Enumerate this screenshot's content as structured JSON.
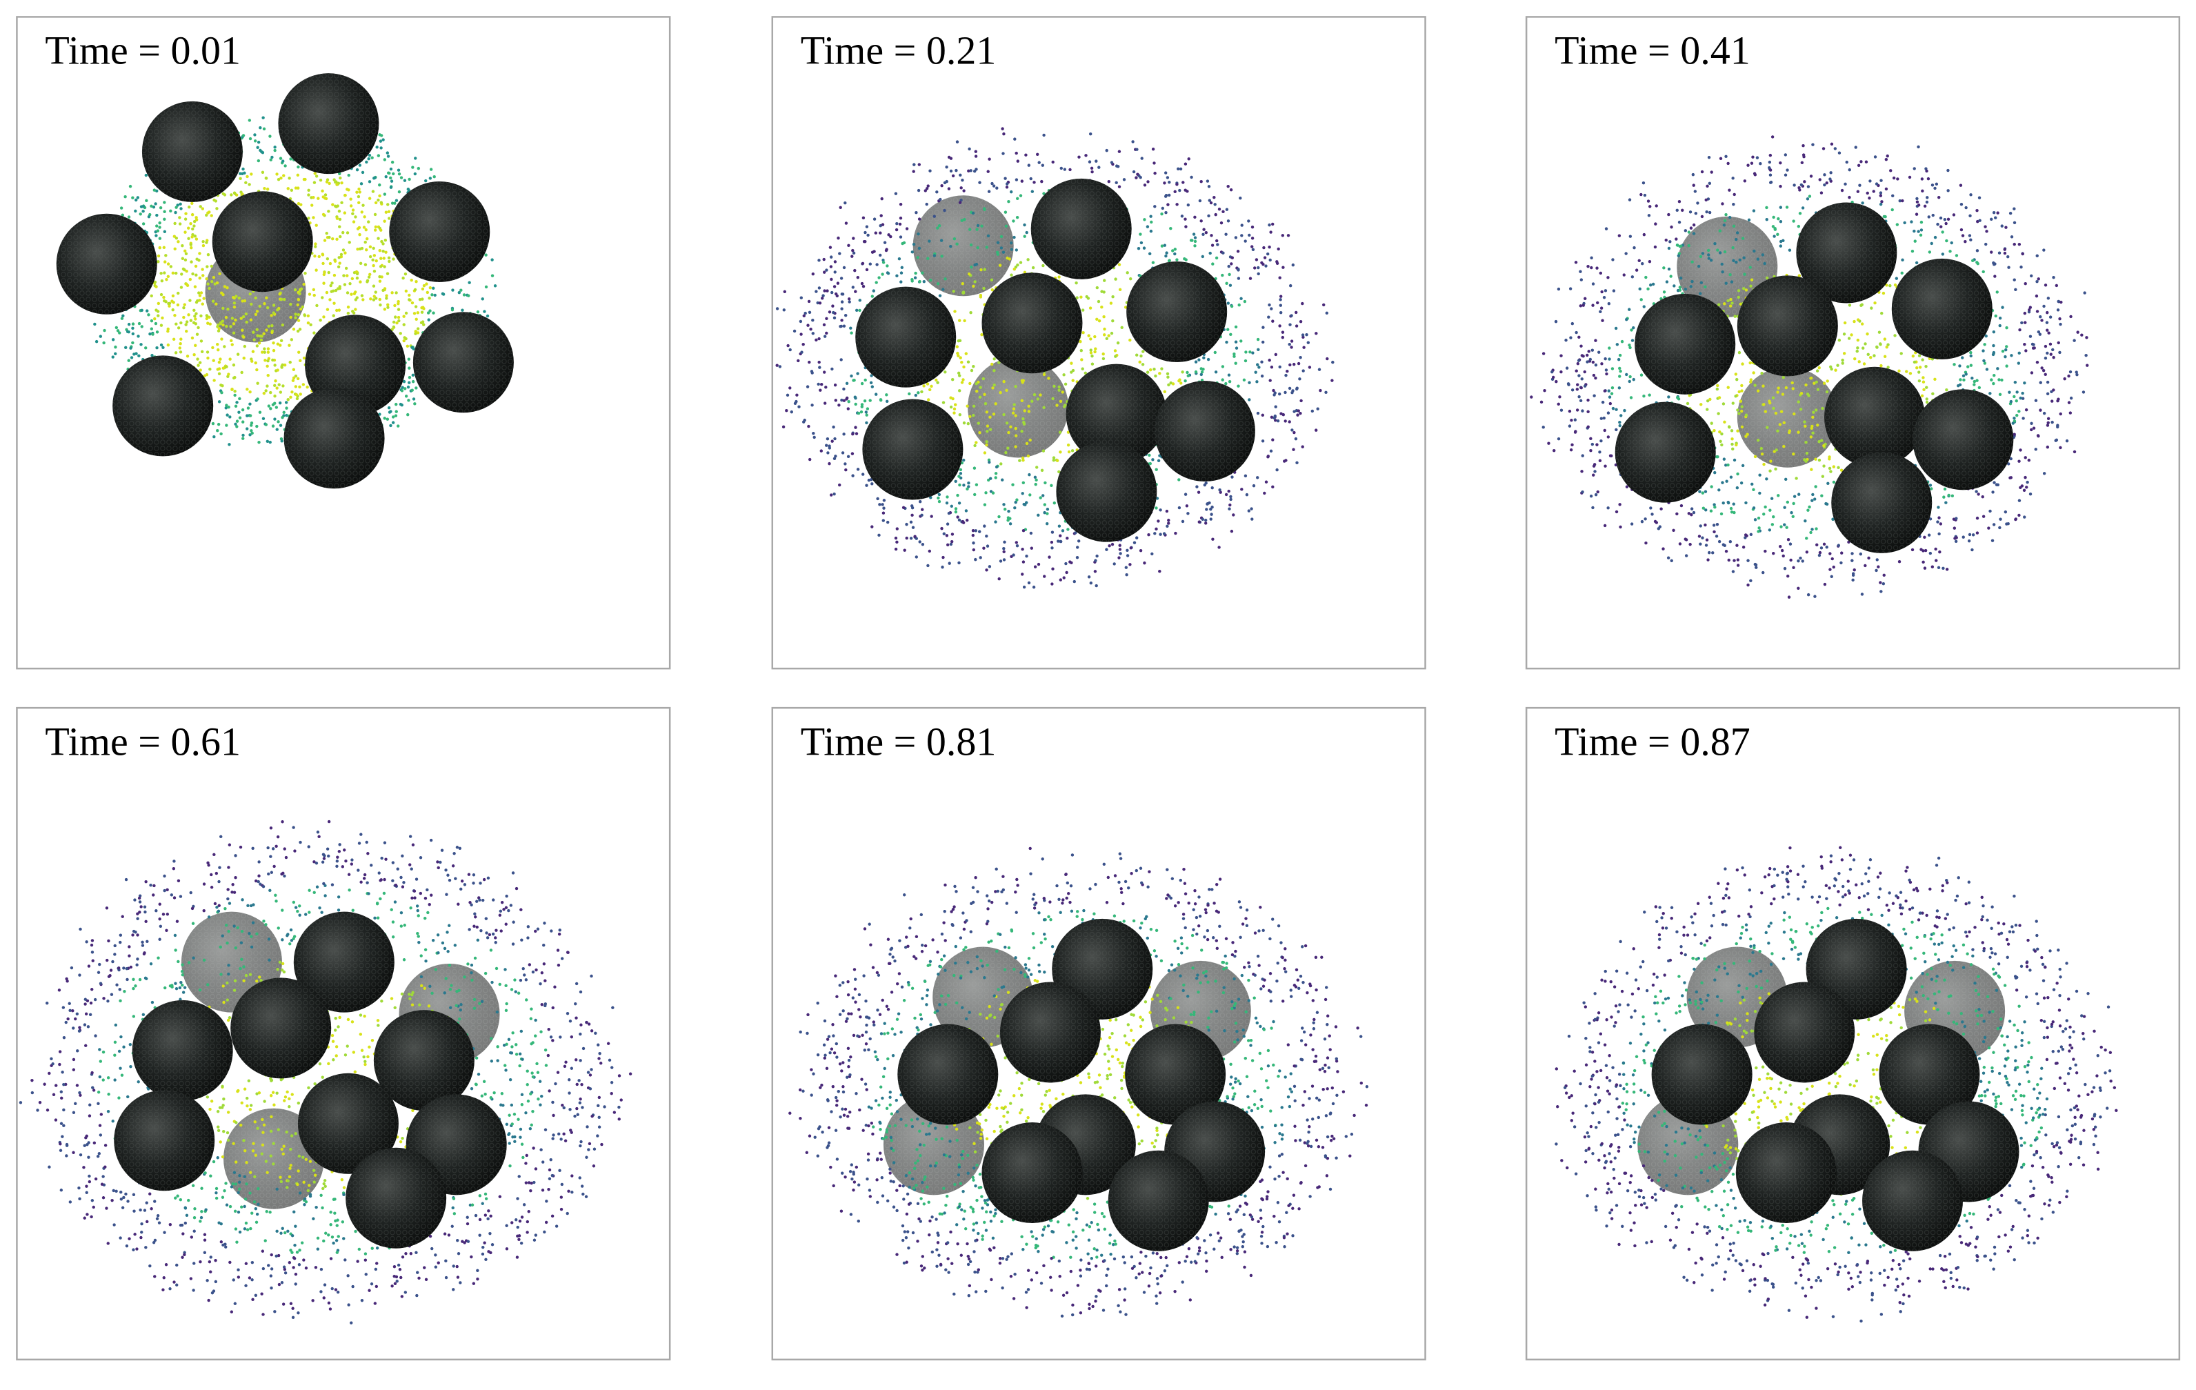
{
  "panels": [
    {
      "label": "Time = 0.01"
    },
    {
      "label": "Time = 0.21"
    },
    {
      "label": "Time = 0.41"
    },
    {
      "label": "Time = 0.61"
    },
    {
      "label": "Time = 0.81"
    },
    {
      "label": "Time = 0.87"
    }
  ]
}
